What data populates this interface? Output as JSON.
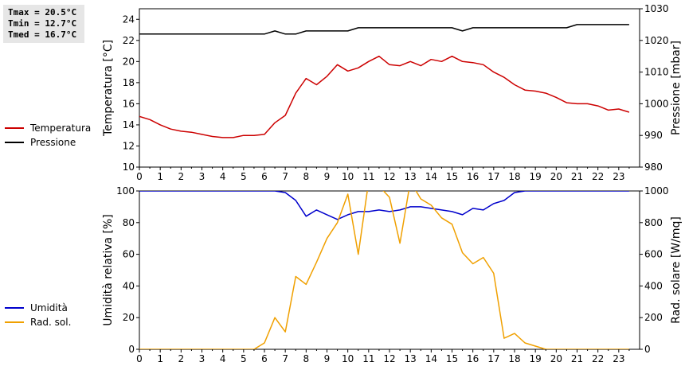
{
  "stats": {
    "tmax": "Tmax = 20.5°C",
    "tmin": "Tmin = 12.7°C",
    "tmed": "Tmed = 16.7°C"
  },
  "chart_data": [
    {
      "type": "line",
      "x": [
        0,
        0.5,
        1,
        1.5,
        2,
        2.5,
        3,
        3.5,
        4,
        4.5,
        5,
        5.5,
        6,
        6.5,
        7,
        7.5,
        8,
        8.5,
        9,
        9.5,
        10,
        10.5,
        11,
        11.5,
        12,
        12.5,
        13,
        13.5,
        14,
        14.5,
        15,
        15.5,
        16,
        16.5,
        17,
        17.5,
        18,
        18.5,
        19,
        19.5,
        20,
        20.5,
        21,
        21.5,
        22,
        22.5,
        23,
        23.5
      ],
      "xlim": [
        0,
        24
      ],
      "xticks": [
        "0",
        "1",
        "2",
        "3",
        "4",
        "5",
        "6",
        "7",
        "8",
        "9",
        "10",
        "11",
        "12",
        "13",
        "14",
        "15",
        "16",
        "17",
        "18",
        "19",
        "20",
        "21",
        "22",
        "23"
      ],
      "ylabel": "Temperatura [°C]",
      "ylim": [
        10,
        25
      ],
      "yticks": [
        "10",
        "12",
        "14",
        "16",
        "18",
        "20",
        "22",
        "24"
      ],
      "y2label": "Pressione [mbar]",
      "y2lim": [
        980,
        1030
      ],
      "y2ticks": [
        "980",
        "990",
        "1000",
        "1010",
        "1020",
        "1030"
      ],
      "series": [
        {
          "name": "Temperatura",
          "color": "#cc0000",
          "axis": "left",
          "values": [
            14.8,
            14.5,
            14.0,
            13.6,
            13.4,
            13.3,
            13.1,
            12.9,
            12.8,
            12.8,
            13.0,
            13.0,
            13.1,
            14.2,
            14.9,
            17.0,
            18.4,
            17.8,
            18.6,
            19.7,
            19.1,
            19.4,
            20.0,
            20.5,
            19.7,
            19.6,
            20.0,
            19.6,
            20.2,
            20.0,
            20.5,
            20.0,
            19.9,
            19.7,
            19.0,
            18.5,
            17.8,
            17.3,
            17.2,
            17.0,
            16.6,
            16.1,
            16.0,
            16.0,
            15.8,
            15.4,
            15.5,
            15.2
          ]
        },
        {
          "name": "Pressione",
          "color": "#000000",
          "axis": "right",
          "values": [
            1022,
            1022,
            1022,
            1022,
            1022,
            1022,
            1022,
            1022,
            1022,
            1022,
            1022,
            1022,
            1022,
            1023,
            1022,
            1022,
            1023,
            1023,
            1023,
            1023,
            1023,
            1024,
            1024,
            1024,
            1024,
            1024,
            1024,
            1024,
            1024,
            1024,
            1024,
            1023,
            1024,
            1024,
            1024,
            1024,
            1024,
            1024,
            1024,
            1024,
            1024,
            1024,
            1025,
            1025,
            1025,
            1025,
            1025,
            1025
          ]
        }
      ]
    },
    {
      "type": "line",
      "x": [
        0,
        0.5,
        1,
        1.5,
        2,
        2.5,
        3,
        3.5,
        4,
        4.5,
        5,
        5.5,
        6,
        6.5,
        7,
        7.5,
        8,
        8.5,
        9,
        9.5,
        10,
        10.5,
        11,
        11.5,
        12,
        12.5,
        13,
        13.5,
        14,
        14.5,
        15,
        15.5,
        16,
        16.5,
        17,
        17.5,
        18,
        18.5,
        19,
        19.5,
        20,
        20.5,
        21,
        21.5,
        22,
        22.5,
        23,
        23.5
      ],
      "xlim": [
        0,
        24
      ],
      "xticks": [
        "0",
        "1",
        "2",
        "3",
        "4",
        "5",
        "6",
        "7",
        "8",
        "9",
        "10",
        "11",
        "12",
        "13",
        "14",
        "15",
        "16",
        "17",
        "18",
        "19",
        "20",
        "21",
        "22",
        "23"
      ],
      "ylabel": "Umidità relativa [%]",
      "ylim": [
        0,
        100
      ],
      "yticks": [
        "0",
        "20",
        "40",
        "60",
        "80",
        "100"
      ],
      "y2label": "Rad. solare [W/mq]",
      "y2lim": [
        0,
        1000
      ],
      "y2ticks": [
        "0",
        "200",
        "400",
        "600",
        "800",
        "1000"
      ],
      "series": [
        {
          "name": "Umidità",
          "color": "#0000cc",
          "axis": "left",
          "values": [
            100,
            100,
            100,
            100,
            100,
            100,
            100,
            100,
            100,
            100,
            100,
            100,
            100,
            100,
            99,
            94,
            84,
            88,
            85,
            82,
            85,
            87,
            87,
            88,
            87,
            88,
            90,
            90,
            89,
            88,
            87,
            85,
            89,
            88,
            92,
            94,
            99,
            100,
            100,
            100,
            100,
            100,
            100,
            100,
            100,
            100,
            100,
            100
          ]
        },
        {
          "name": "Rad. sol.",
          "color": "#f0a000",
          "axis": "right",
          "values": [
            0,
            0,
            0,
            0,
            0,
            0,
            0,
            0,
            0,
            0,
            0,
            0,
            40,
            200,
            110,
            460,
            410,
            550,
            700,
            800,
            980,
            600,
            1060,
            1030,
            960,
            670,
            1060,
            950,
            910,
            830,
            790,
            610,
            540,
            580,
            480,
            70,
            100,
            40,
            20,
            0,
            0,
            0,
            0,
            0,
            0,
            0,
            0,
            0
          ]
        }
      ]
    }
  ]
}
